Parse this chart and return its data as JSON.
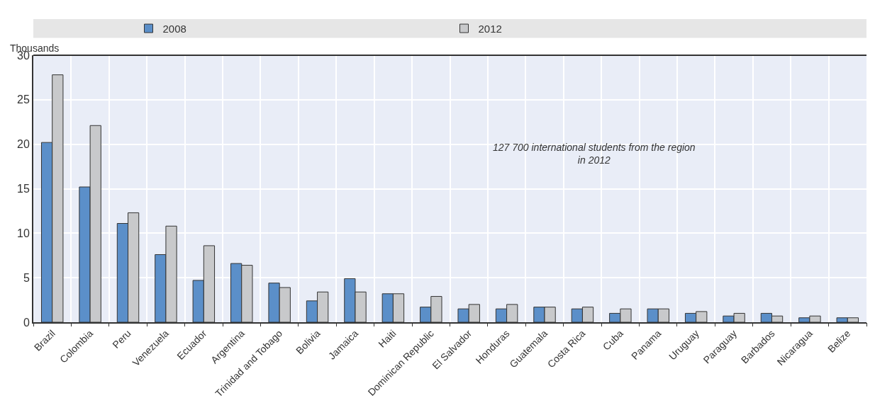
{
  "chart_data": {
    "type": "bar",
    "ylabel": "Thousands",
    "categories": [
      "Brazil",
      "Colombia",
      "Peru",
      "Venezuela",
      "Ecuador",
      "Argentina",
      "Trinidad and Tobago",
      "Bolivia",
      "Jamaica",
      "Haiti",
      "Dominican Republic",
      "El Salvador",
      "Honduras",
      "Guatemala",
      "Costa Rica",
      "Cuba",
      "Panama",
      "Uruguay",
      "Paraguay",
      "Barbados",
      "Nicaragua",
      "Belize"
    ],
    "series": [
      {
        "name": "2008",
        "color": "#5b8fc9",
        "values": [
          20.2,
          15.2,
          11.1,
          7.6,
          4.7,
          6.6,
          4.4,
          2.4,
          4.9,
          3.2,
          1.7,
          1.5,
          1.5,
          1.7,
          1.5,
          1.0,
          1.5,
          1.0,
          0.7,
          1.0,
          0.5,
          0.5
        ]
      },
      {
        "name": "2012",
        "color": "#c8c9cb",
        "values": [
          27.8,
          22.1,
          12.3,
          10.8,
          8.6,
          6.4,
          3.9,
          3.4,
          3.4,
          3.2,
          2.9,
          2.0,
          2.0,
          1.7,
          1.7,
          1.5,
          1.5,
          1.2,
          1.0,
          0.7,
          0.7,
          0.5
        ]
      }
    ],
    "ylim": [
      0,
      30
    ],
    "yticks": [
      0,
      5,
      10,
      15,
      20,
      25,
      30
    ],
    "grid": true,
    "legend": "top",
    "annotations": [
      "127 700 international students from the region in 2012"
    ]
  }
}
